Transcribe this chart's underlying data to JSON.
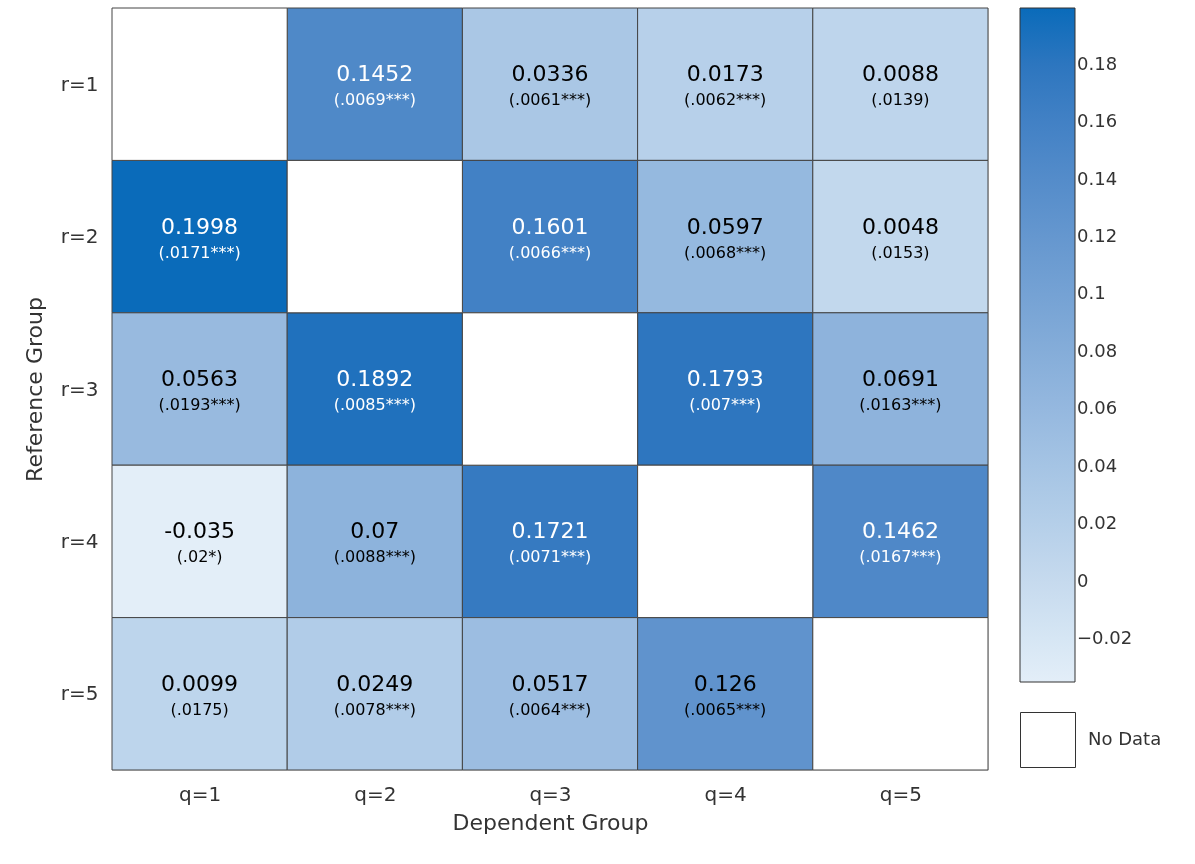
{
  "chart_data": {
    "type": "heatmap",
    "xlabel": "Dependent Group",
    "ylabel": "Reference Group",
    "categories": [
      "q=1",
      "q=2",
      "q=3",
      "q=4",
      "q=5"
    ],
    "y_categories": [
      "r=1",
      "r=2",
      "r=3",
      "r=4",
      "r=5"
    ],
    "cells": [
      [
        null,
        0.1452,
        0.0336,
        0.0173,
        0.0088
      ],
      [
        0.1998,
        null,
        0.1601,
        0.0597,
        0.0048
      ],
      [
        0.0563,
        0.1892,
        null,
        0.1793,
        0.0691
      ],
      [
        -0.035,
        0.07,
        0.1721,
        null,
        0.1462
      ],
      [
        0.0099,
        0.0249,
        0.0517,
        0.126,
        null
      ]
    ],
    "cell_labels": [
      [
        null,
        "0.1452\n(.0069***)",
        "0.0336\n(.0061***)",
        "0.0173\n(.0062***)",
        "0.0088\n(.0139)"
      ],
      [
        "0.1998\n(.0171***)",
        null,
        "0.1601\n(.0066***)",
        "0.0597\n(.0068***)",
        "0.0048\n(.0153)"
      ],
      [
        "0.0563\n(.0193***)",
        "0.1892\n(.0085***)",
        null,
        "0.1793\n(.007***)",
        "0.0691\n(.0163***)"
      ],
      [
        "-0.035\n(.02*)",
        "0.07\n(.0088***)",
        "0.1721\n(.0071***)",
        null,
        "0.1462\n(.0167***)"
      ],
      [
        "0.0099\n(.0175)",
        "0.0249\n(.0078***)",
        "0.0517\n(.0064***)",
        "0.126\n(.0065***)",
        null
      ]
    ],
    "clim": [
      -0.035,
      0.1998
    ],
    "cticks": [
      -0.02,
      0,
      0.02,
      0.04,
      0.06,
      0.08,
      0.1,
      0.12,
      0.14,
      0.16,
      0.18
    ],
    "annotations": [
      "No Data"
    ]
  }
}
